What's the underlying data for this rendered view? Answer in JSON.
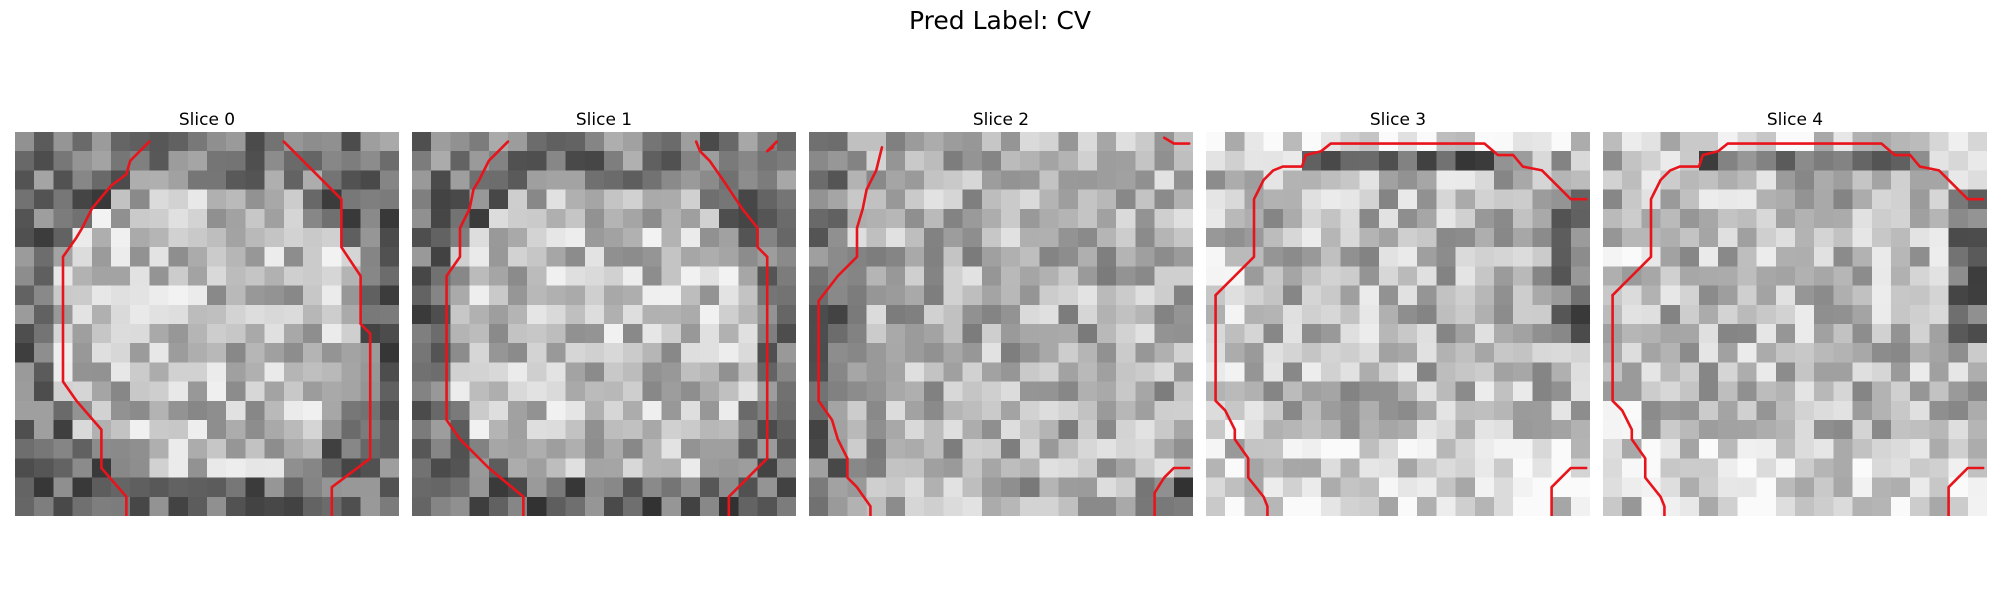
{
  "title": "Pred Label: CV",
  "contour_color": "#e8141c",
  "panels": [
    {
      "label": "Slice 0"
    },
    {
      "label": "Slice 1"
    },
    {
      "label": "Slice 2"
    },
    {
      "label": "Slice 3"
    },
    {
      "label": "Slice 4"
    }
  ]
}
